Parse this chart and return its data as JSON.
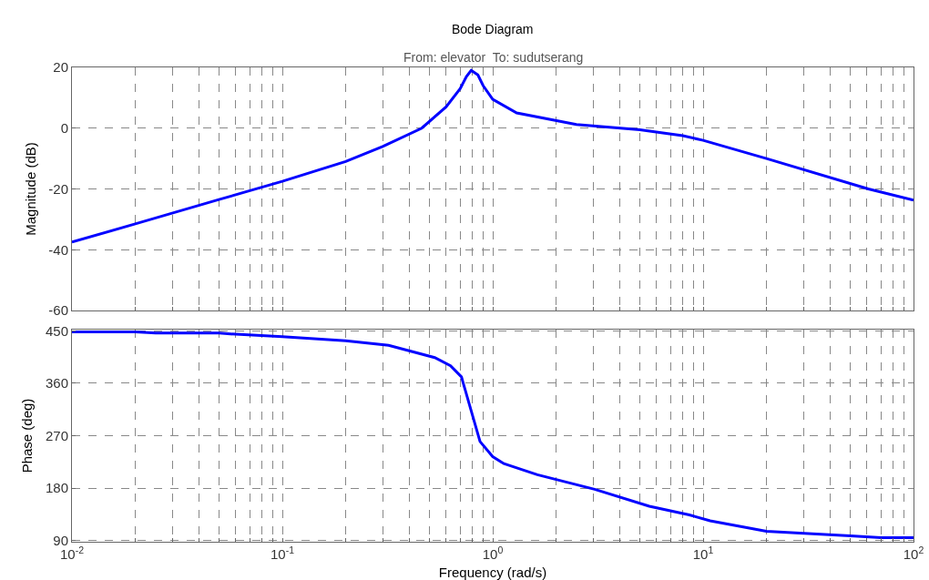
{
  "chart_data": [
    {
      "type": "line",
      "title": "Bode Diagram",
      "subtitle": "From: elevator  To: sudutserang",
      "ylabel": "Magnitude (dB)",
      "log": "x",
      "grid": true,
      "marker": "none",
      "line_style": "solid",
      "tick_labels": "y",
      "xlim": [
        0.01,
        100
      ],
      "ylim": [
        -60,
        20
      ],
      "yticks": [
        -60,
        -40,
        -20,
        0,
        20
      ],
      "xticks": [
        {
          "value": 0.01,
          "label": "10$^{-2}$"
        },
        {
          "value": 0.02,
          "label": null
        },
        {
          "value": 0.03,
          "label": null
        },
        {
          "value": 0.04,
          "label": null
        },
        {
          "value": 0.05,
          "label": null
        },
        {
          "value": 0.06,
          "label": null
        },
        {
          "value": 0.07,
          "label": null
        },
        {
          "value": 0.08,
          "label": null
        },
        {
          "value": 0.09,
          "label": null
        },
        {
          "value": 0.1,
          "label": "10$^{-1}$"
        },
        {
          "value": 0.2,
          "label": null
        },
        {
          "value": 0.3,
          "label": null
        },
        {
          "value": 0.4,
          "label": null
        },
        {
          "value": 0.5,
          "label": null
        },
        {
          "value": 0.6,
          "label": null
        },
        {
          "value": 0.7,
          "label": null
        },
        {
          "value": 0.8,
          "label": null
        },
        {
          "value": 0.9,
          "label": null
        },
        {
          "value": 1,
          "label": "10$^{0}$"
        },
        {
          "value": 2,
          "label": null
        },
        {
          "value": 3,
          "label": null
        },
        {
          "value": 4,
          "label": null
        },
        {
          "value": 5,
          "label": null
        },
        {
          "value": 6,
          "label": null
        },
        {
          "value": 7,
          "label": null
        },
        {
          "value": 8,
          "label": null
        },
        {
          "value": 9,
          "label": null
        },
        {
          "value": 10,
          "label": "10$^{1}$"
        },
        {
          "value": 20,
          "label": null
        },
        {
          "value": 30,
          "label": null
        },
        {
          "value": 40,
          "label": null
        },
        {
          "value": 50,
          "label": null
        },
        {
          "value": 60,
          "label": null
        },
        {
          "value": 70,
          "label": null
        },
        {
          "value": 80,
          "label": null
        },
        {
          "value": 90,
          "label": null
        },
        {
          "value": 100,
          "label": "10$^{2}$"
        }
      ],
      "x": [
        0.01,
        0.02,
        0.05,
        0.1,
        0.2,
        0.3,
        0.46,
        0.6,
        0.7,
        0.75,
        0.79,
        0.85,
        0.9,
        1,
        1.3,
        2.5,
        5,
        8,
        10,
        20,
        61,
        100
      ],
      "series": [
        {
          "color": "#0000ff",
          "values": [
            -37.5,
            -31.5,
            -23.5,
            -17.5,
            -11,
            -6,
            0,
            7,
            13,
            17,
            19,
            17.5,
            14,
            9.5,
            5,
            1.2,
            -0.5,
            -2.5,
            -4,
            -10,
            -20,
            -23.7
          ]
        }
      ]
    },
    {
      "type": "line",
      "xlabel": "Frequency (rad/s)",
      "ylabel": "Phase (deg)",
      "log": "x",
      "grid": true,
      "marker": "none",
      "line_style": "solid",
      "xlim": [
        0.01,
        100
      ],
      "ylim": [
        88,
        452
      ],
      "yticks": [
        90,
        180,
        270,
        360,
        450
      ],
      "xticks": [
        {
          "value": 0.01,
          "label": "10$^{-2}$"
        },
        {
          "value": 0.02,
          "label": null
        },
        {
          "value": 0.03,
          "label": null
        },
        {
          "value": 0.04,
          "label": null
        },
        {
          "value": 0.05,
          "label": null
        },
        {
          "value": 0.06,
          "label": null
        },
        {
          "value": 0.07,
          "label": null
        },
        {
          "value": 0.08,
          "label": null
        },
        {
          "value": 0.09,
          "label": null
        },
        {
          "value": 0.1,
          "label": "10$^{-1}$"
        },
        {
          "value": 0.2,
          "label": null
        },
        {
          "value": 0.3,
          "label": null
        },
        {
          "value": 0.4,
          "label": null
        },
        {
          "value": 0.5,
          "label": null
        },
        {
          "value": 0.6,
          "label": null
        },
        {
          "value": 0.7,
          "label": null
        },
        {
          "value": 0.8,
          "label": null
        },
        {
          "value": 0.9,
          "label": null
        },
        {
          "value": 1,
          "label": "10$^{0}$"
        },
        {
          "value": 2,
          "label": null
        },
        {
          "value": 3,
          "label": null
        },
        {
          "value": 4,
          "label": null
        },
        {
          "value": 5,
          "label": null
        },
        {
          "value": 6,
          "label": null
        },
        {
          "value": 7,
          "label": null
        },
        {
          "value": 8,
          "label": null
        },
        {
          "value": 9,
          "label": null
        },
        {
          "value": 10,
          "label": "10$^{1}$"
        },
        {
          "value": 20,
          "label": null
        },
        {
          "value": 30,
          "label": null
        },
        {
          "value": 40,
          "label": null
        },
        {
          "value": 50,
          "label": null
        },
        {
          "value": 60,
          "label": null
        },
        {
          "value": 70,
          "label": null
        },
        {
          "value": 80,
          "label": null
        },
        {
          "value": 90,
          "label": null
        },
        {
          "value": 100,
          "label": "10$^{2}$"
        }
      ],
      "x": [
        0.01,
        0.02,
        0.025,
        0.05,
        0.06,
        0.1,
        0.2,
        0.32,
        0.53,
        0.63,
        0.71,
        0.87,
        1,
        1.13,
        1.63,
        3.05,
        5.55,
        8.6,
        10.8,
        20,
        50,
        70,
        100
      ],
      "series": [
        {
          "color": "#0000ff",
          "values": [
            448,
            448,
            446,
            446,
            444,
            440,
            433,
            425,
            404,
            390,
            371,
            260,
            234,
            222,
            203,
            178,
            149,
            134,
            124,
            106,
            98,
            95,
            95
          ]
        }
      ]
    }
  ]
}
